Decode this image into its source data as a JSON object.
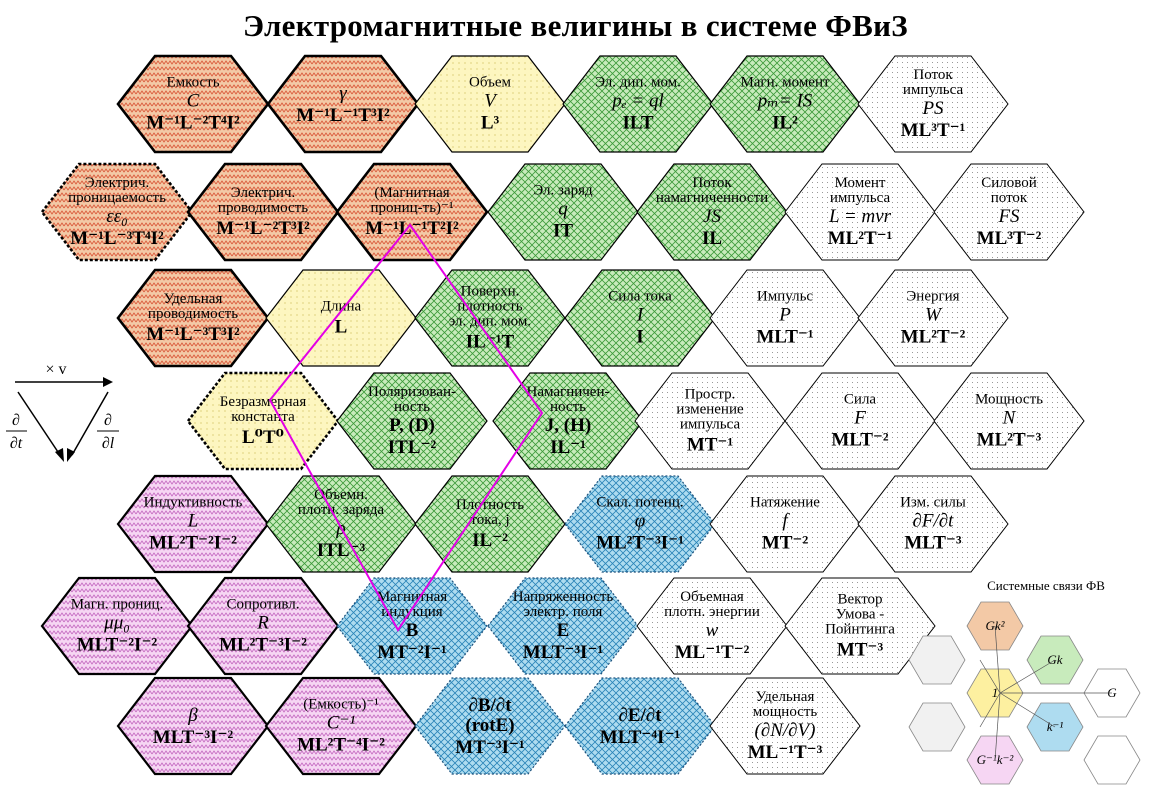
{
  "title": "Электромагнитные велигины в системе ФВиЗ",
  "colors": {
    "orange": "#e9a878",
    "green": "#9bd68a",
    "yellow": "#fdf4b0",
    "pink": "#f2c6f0",
    "blue": "#7fc6e6",
    "white": "#ffffff",
    "polyline": "#e400e6"
  },
  "cells": [
    {
      "id": "capacitance",
      "color": "orange",
      "lines": [
        {
          "t": "Емкость",
          "s": "sm"
        },
        {
          "t": "C",
          "s": "sym"
        },
        {
          "t": "M⁻¹L⁻²T⁴I²",
          "s": "dim"
        }
      ]
    },
    {
      "id": "gamma",
      "color": "orange",
      "lines": [
        {
          "t": "γ",
          "s": "sym"
        },
        {
          "t": "M⁻¹L⁻¹T³I²",
          "s": "dim"
        }
      ]
    },
    {
      "id": "volume",
      "color": "yellow",
      "lines": [
        {
          "t": "Объем",
          "s": "sm"
        },
        {
          "t": "V",
          "s": "sym"
        },
        {
          "t": "L³",
          "s": "dim"
        }
      ]
    },
    {
      "id": "el-dipole",
      "color": "green",
      "lines": [
        {
          "t": "Эл. дип. мом.",
          "s": "sm"
        },
        {
          "t": "pₑ = ql",
          "s": "sym"
        },
        {
          "t": "ILT",
          "s": "dim"
        }
      ]
    },
    {
      "id": "mag-moment",
      "color": "green",
      "lines": [
        {
          "t": "Магн. момент",
          "s": "sm"
        },
        {
          "t": "pₘ= IS",
          "s": "sym"
        },
        {
          "t": "IL²",
          "s": "dim"
        }
      ]
    },
    {
      "id": "momentum-flux",
      "color": "white",
      "lines": [
        {
          "t": "Поток",
          "s": "sm"
        },
        {
          "t": "импульса",
          "s": "sm"
        },
        {
          "t": "PS",
          "s": "sym"
        },
        {
          "t": "ML³T⁻¹",
          "s": "dim"
        }
      ]
    },
    {
      "id": "permittivity",
      "color": "orange",
      "lines": [
        {
          "t": "Электрич.",
          "s": "sm"
        },
        {
          "t": "проницаемость",
          "s": "sm"
        },
        {
          "t": "εε₀",
          "s": "sym"
        },
        {
          "t": "M⁻¹L⁻³T⁴I²",
          "s": "dim"
        }
      ]
    },
    {
      "id": "el-conductance",
      "color": "orange",
      "lines": [
        {
          "t": "Электрич.",
          "s": "sm"
        },
        {
          "t": "проводимость",
          "s": "sm"
        },
        {
          "t": "M⁻¹L⁻²T³I²",
          "s": "dim"
        }
      ]
    },
    {
      "id": "inv-permeability",
      "color": "orange",
      "lines": [
        {
          "t": "(Магнитная",
          "s": "sm"
        },
        {
          "t": "прониц-ть)⁻¹",
          "s": "sm"
        },
        {
          "t": "M⁻¹L⁻¹T²I²",
          "s": "dim"
        }
      ]
    },
    {
      "id": "charge",
      "color": "green",
      "lines": [
        {
          "t": "Эл. заряд",
          "s": "sm"
        },
        {
          "t": "q",
          "s": "sym"
        },
        {
          "t": "IT",
          "s": "dim"
        }
      ]
    },
    {
      "id": "mag-flux",
      "color": "green",
      "lines": [
        {
          "t": "Поток",
          "s": "sm"
        },
        {
          "t": "намагниченности",
          "s": "sm"
        },
        {
          "t": "JS",
          "s": "sym"
        },
        {
          "t": "IL",
          "s": "dim"
        }
      ]
    },
    {
      "id": "angular-momentum",
      "color": "white",
      "lines": [
        {
          "t": "Момент",
          "s": "sm"
        },
        {
          "t": "импульса",
          "s": "sm"
        },
        {
          "t": "L = mvr",
          "s": "sym"
        },
        {
          "t": "ML²T⁻¹",
          "s": "dim"
        }
      ]
    },
    {
      "id": "force-flux",
      "color": "white",
      "lines": [
        {
          "t": "Силовой",
          "s": "sm"
        },
        {
          "t": "поток",
          "s": "sm"
        },
        {
          "t": "FS",
          "s": "sym"
        },
        {
          "t": "ML³T⁻²",
          "s": "dim"
        }
      ]
    },
    {
      "id": "conductivity",
      "color": "orange",
      "lines": [
        {
          "t": "Удельная",
          "s": "sm"
        },
        {
          "t": "проводимость",
          "s": "sm"
        },
        {
          "t": "M⁻¹L⁻³T³I²",
          "s": "dim"
        }
      ]
    },
    {
      "id": "length",
      "color": "yellow",
      "lines": [
        {
          "t": "Длина",
          "s": "sm"
        },
        {
          "t": "L",
          "s": "dim"
        }
      ]
    },
    {
      "id": "surface-dipole",
      "color": "green",
      "lines": [
        {
          "t": "Поверхн.",
          "s": "sm"
        },
        {
          "t": "плотность",
          "s": "sm"
        },
        {
          "t": "эл. дип. мом.",
          "s": "sm"
        },
        {
          "t": "IL⁻¹T",
          "s": "dim"
        }
      ]
    },
    {
      "id": "current",
      "color": "green",
      "lines": [
        {
          "t": "Сила тока",
          "s": "sm"
        },
        {
          "t": "I",
          "s": "sym"
        },
        {
          "t": "I",
          "s": "dim"
        }
      ]
    },
    {
      "id": "impulse",
      "color": "white",
      "lines": [
        {
          "t": "Импульс",
          "s": "sm"
        },
        {
          "t": "P",
          "s": "sym"
        },
        {
          "t": "MLT⁻¹",
          "s": "dim"
        }
      ]
    },
    {
      "id": "energy",
      "color": "white",
      "lines": [
        {
          "t": "Энергия",
          "s": "sm"
        },
        {
          "t": "W",
          "s": "sym"
        },
        {
          "t": "ML²T⁻²",
          "s": "dim"
        }
      ]
    },
    {
      "id": "dimensionless",
      "color": "yellow",
      "lines": [
        {
          "t": "Безразмерная",
          "s": "sm"
        },
        {
          "t": "константа",
          "s": "sm"
        },
        {
          "t": "L⁰T⁰",
          "s": "dim"
        }
      ]
    },
    {
      "id": "polarization",
      "color": "green",
      "lines": [
        {
          "t": "Поляризован-",
          "s": "sm"
        },
        {
          "t": "ность",
          "s": "sm"
        },
        {
          "t": "P, (D)",
          "s": "bold"
        },
        {
          "t": "ITL⁻²",
          "s": "dim"
        }
      ]
    },
    {
      "id": "magnetization",
      "color": "green",
      "lines": [
        {
          "t": "Намагничен-",
          "s": "sm"
        },
        {
          "t": "ность",
          "s": "sm"
        },
        {
          "t": "J, (H)",
          "s": "bold"
        },
        {
          "t": "IL⁻¹",
          "s": "dim"
        }
      ]
    },
    {
      "id": "momentum-spatial",
      "color": "white",
      "lines": [
        {
          "t": "Простр.",
          "s": "sm"
        },
        {
          "t": "изменение",
          "s": "sm"
        },
        {
          "t": "импульса",
          "s": "sm"
        },
        {
          "t": "MT⁻¹",
          "s": "dim"
        }
      ]
    },
    {
      "id": "force",
      "color": "white",
      "lines": [
        {
          "t": "Сила",
          "s": "sm"
        },
        {
          "t": "F",
          "s": "sym"
        },
        {
          "t": "MLT⁻²",
          "s": "dim"
        }
      ]
    },
    {
      "id": "power",
      "color": "white",
      "lines": [
        {
          "t": "Мощность",
          "s": "sm"
        },
        {
          "t": "N",
          "s": "sym"
        },
        {
          "t": "ML²T⁻³",
          "s": "dim"
        }
      ]
    },
    {
      "id": "inductance",
      "color": "pink",
      "lines": [
        {
          "t": "Индуктивность",
          "s": "sm"
        },
        {
          "t": "L",
          "s": "sym"
        },
        {
          "t": "ML²T⁻²I⁻²",
          "s": "dim"
        }
      ]
    },
    {
      "id": "charge-density",
      "color": "green",
      "lines": [
        {
          "t": "Объемн.",
          "s": "sm"
        },
        {
          "t": "плотн. заряда",
          "s": "sm"
        },
        {
          "t": "ρ",
          "s": "sym"
        },
        {
          "t": "ITL⁻³",
          "s": "dim"
        }
      ]
    },
    {
      "id": "current-density",
      "color": "green",
      "lines": [
        {
          "t": "Плотность",
          "s": "sm"
        },
        {
          "t": "тока,  j",
          "s": "sm"
        },
        {
          "t": "IL⁻²",
          "s": "dim"
        }
      ]
    },
    {
      "id": "scalar-potential",
      "color": "blue",
      "lines": [
        {
          "t": "Скал. потенц.",
          "s": "sm"
        },
        {
          "t": "φ",
          "s": "sym"
        },
        {
          "t": "ML²T⁻³I⁻¹",
          "s": "dim"
        }
      ]
    },
    {
      "id": "tension",
      "color": "white",
      "lines": [
        {
          "t": "Натяжение",
          "s": "sm"
        },
        {
          "t": "f",
          "s": "sym"
        },
        {
          "t": "MT⁻²",
          "s": "dim"
        }
      ]
    },
    {
      "id": "force-change",
      "color": "white",
      "lines": [
        {
          "t": "Изм. силы",
          "s": "sm"
        },
        {
          "t": "∂F/∂t",
          "s": "sym"
        },
        {
          "t": "MLT⁻³",
          "s": "dim"
        }
      ]
    },
    {
      "id": "mag-permeability",
      "color": "pink",
      "lines": [
        {
          "t": "Магн. прониц.",
          "s": "sm"
        },
        {
          "t": "μμ₀",
          "s": "sym"
        },
        {
          "t": "MLT⁻²I⁻²",
          "s": "dim"
        }
      ]
    },
    {
      "id": "resistance",
      "color": "pink",
      "lines": [
        {
          "t": "Сопротивл.",
          "s": "sm"
        },
        {
          "t": "R",
          "s": "sym"
        },
        {
          "t": "ML²T⁻³I⁻²",
          "s": "dim"
        }
      ]
    },
    {
      "id": "mag-induction",
      "color": "blue",
      "lines": [
        {
          "t": "Магнитная",
          "s": "sm"
        },
        {
          "t": "индукция",
          "s": "sm"
        },
        {
          "t": "B",
          "s": "bold"
        },
        {
          "t": "MT⁻²I⁻¹",
          "s": "dim"
        }
      ]
    },
    {
      "id": "el-field",
      "color": "blue",
      "lines": [
        {
          "t": "Напряженность",
          "s": "sm"
        },
        {
          "t": "электр. поля",
          "s": "sm"
        },
        {
          "t": "E",
          "s": "bold"
        },
        {
          "t": "MLT⁻³I⁻¹",
          "s": "dim"
        }
      ]
    },
    {
      "id": "energy-density",
      "color": "white",
      "lines": [
        {
          "t": "Объемная",
          "s": "sm"
        },
        {
          "t": "плотн. энергии",
          "s": "sm"
        },
        {
          "t": "w",
          "s": "sym"
        },
        {
          "t": "ML⁻¹T⁻²",
          "s": "dim"
        }
      ]
    },
    {
      "id": "umov-poynting",
      "color": "white",
      "lines": [
        {
          "t": "Вектор",
          "s": "sm"
        },
        {
          "t": "Умова -",
          "s": "sm"
        },
        {
          "t": "Пойнтинга",
          "s": "sm"
        },
        {
          "t": "MT⁻³",
          "s": "dim"
        }
      ]
    },
    {
      "id": "beta",
      "color": "pink",
      "lines": [
        {
          "t": "β",
          "s": "sym"
        },
        {
          "t": "MLT⁻³I⁻²",
          "s": "dim"
        }
      ]
    },
    {
      "id": "inv-capacitance",
      "color": "pink",
      "lines": [
        {
          "t": "(Емкость)⁻¹",
          "s": "sm"
        },
        {
          "t": "C⁻¹",
          "s": "sym"
        },
        {
          "t": "ML²T⁻⁴I⁻²",
          "s": "dim"
        }
      ]
    },
    {
      "id": "dB-dt",
      "color": "blue",
      "lines": [
        {
          "t": "∂B/∂t",
          "s": "bold"
        },
        {
          "t": "(rotE)",
          "s": "bold"
        },
        {
          "t": "MT⁻³I⁻¹",
          "s": "dim"
        }
      ]
    },
    {
      "id": "dE-dt",
      "color": "blue",
      "lines": [
        {
          "t": "∂E/∂t",
          "s": "bold"
        },
        {
          "t": "MLT⁻⁴I⁻¹",
          "s": "dim"
        }
      ]
    },
    {
      "id": "power-density",
      "color": "white",
      "lines": [
        {
          "t": "Удельная",
          "s": "sm"
        },
        {
          "t": "мощность",
          "s": "sm"
        },
        {
          "t": "(∂N/∂V)",
          "s": "sym"
        },
        {
          "t": "ML⁻¹T⁻³",
          "s": "dim"
        }
      ]
    }
  ],
  "legend_arrows": {
    "top": "× v",
    "left_num": "∂",
    "left_den": "∂t",
    "right_num": "∂",
    "right_den": "∂l"
  },
  "mini": {
    "title": "Системные связи ФВ",
    "labels": [
      "Gk²",
      "Gk",
      "G",
      "1",
      "k⁻¹",
      "G⁻¹k⁻²"
    ]
  }
}
